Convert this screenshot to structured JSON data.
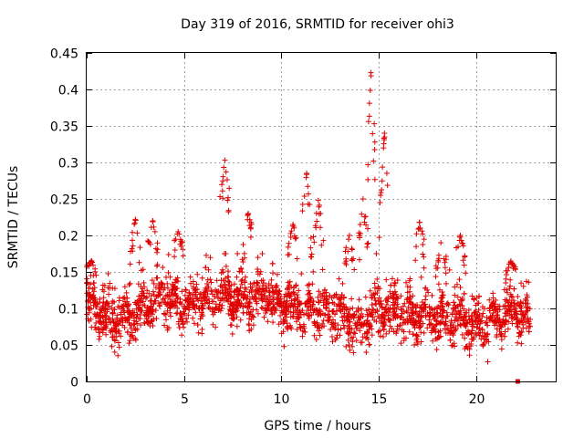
{
  "chart_data": {
    "type": "scatter",
    "title": "Day 319 of 2016, SRMTID for receiver ohi3",
    "xlabel": "GPS time / hours",
    "ylabel": "SRMTID / TECUs",
    "xlim": [
      0,
      24.1
    ],
    "ylim": [
      0,
      0.45
    ],
    "xticks": [
      0,
      5,
      10,
      15,
      20
    ],
    "xtick_labels": [
      "0",
      "5",
      "10",
      "15",
      "20"
    ],
    "yticks": [
      0,
      0.05,
      0.1,
      0.15,
      0.2,
      0.25,
      0.3,
      0.35,
      0.4,
      0.45
    ],
    "ytick_labels": [
      "0",
      "0.05",
      "0.1",
      "0.15",
      "0.2",
      "0.25",
      "0.3",
      "0.35",
      "0.4",
      "0.45"
    ],
    "grid": true,
    "series": [
      {
        "name": "SRMTID",
        "color": "#e00000",
        "marker": "plus",
        "time_range_hours": [
          0,
          22.8
        ],
        "baseline": [
          [
            0,
            0.11
          ],
          [
            1,
            0.09
          ],
          [
            2,
            0.085
          ],
          [
            3,
            0.1
          ],
          [
            4,
            0.12
          ],
          [
            5,
            0.105
          ],
          [
            6,
            0.115
          ],
          [
            7,
            0.12
          ],
          [
            8,
            0.11
          ],
          [
            9,
            0.12
          ],
          [
            10,
            0.105
          ],
          [
            11,
            0.095
          ],
          [
            12,
            0.1
          ],
          [
            13,
            0.09
          ],
          [
            14,
            0.075
          ],
          [
            15,
            0.1
          ],
          [
            16,
            0.095
          ],
          [
            17,
            0.09
          ],
          [
            18,
            0.09
          ],
          [
            19,
            0.085
          ],
          [
            20,
            0.075
          ],
          [
            21,
            0.085
          ],
          [
            22,
            0.1
          ],
          [
            22.8,
            0.08
          ]
        ],
        "spread": 0.028,
        "point_count": 2300,
        "peaks": [
          [
            0.25,
            0.165
          ],
          [
            2.5,
            0.222
          ],
          [
            3.4,
            0.22
          ],
          [
            4.7,
            0.205
          ],
          [
            7.1,
            0.303
          ],
          [
            8.3,
            0.23
          ],
          [
            10.6,
            0.215
          ],
          [
            11.3,
            0.285
          ],
          [
            11.9,
            0.248
          ],
          [
            13.5,
            0.2
          ],
          [
            14.2,
            0.25
          ],
          [
            14.6,
            0.423
          ],
          [
            15.3,
            0.34
          ],
          [
            17.1,
            0.218
          ],
          [
            18.2,
            0.19
          ],
          [
            19.2,
            0.2
          ],
          [
            21.8,
            0.165
          ]
        ],
        "square_markers": [
          [
            22.15,
            0.0
          ]
        ]
      }
    ]
  }
}
